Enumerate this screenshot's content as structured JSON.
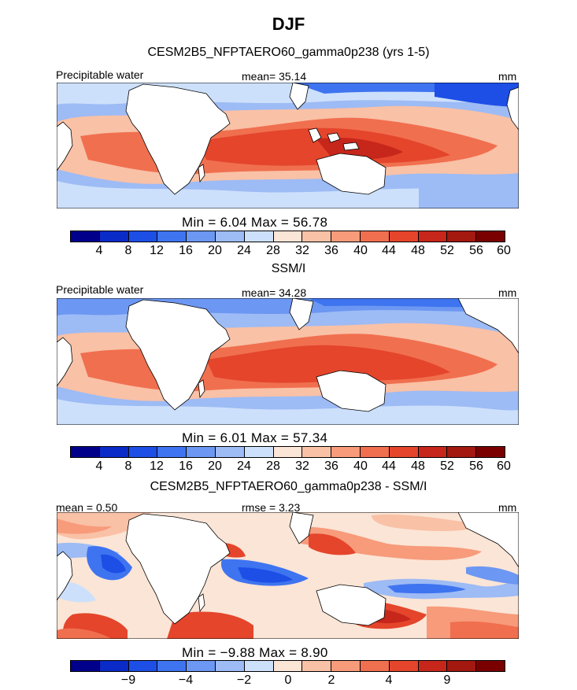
{
  "title": "DJF",
  "colors": [
    "#00008b",
    "#0a2bc7",
    "#1d4fe6",
    "#3f74f0",
    "#6c97f2",
    "#9dbbf5",
    "#cde0fb",
    "#fbe5d6",
    "#f9c1a6",
    "#f79b7b",
    "#f06f4f",
    "#e4452b",
    "#c7261b",
    "#a3180f",
    "#7a0000"
  ],
  "panels": [
    {
      "title": "CESM2B5_NFPTAERO60_gamma0p238 (yrs 1-5)",
      "left_label": "Precipitable water",
      "mid_label": "mean=  35.14",
      "right_label": "mm",
      "minmax": "Min =    6.04  Max =   56.78",
      "colorbar_ticks": [
        "4",
        "8",
        "12",
        "16",
        "20",
        "24",
        "28",
        "32",
        "36",
        "40",
        "44",
        "48",
        "52",
        "56",
        "60"
      ]
    },
    {
      "title": "SSM/I",
      "left_label": "Precipitable water",
      "mid_label": "mean=  34.28",
      "right_label": "mm",
      "minmax": "Min =    6.01  Max =   57.34",
      "colorbar_ticks": [
        "4",
        "8",
        "12",
        "16",
        "20",
        "24",
        "28",
        "32",
        "36",
        "40",
        "44",
        "48",
        "52",
        "56",
        "60"
      ]
    },
    {
      "title": "CESM2B5_NFPTAERO60_gamma0p238 - SSM/I",
      "left_label": "mean =    0.50",
      "mid_label": "rmse =    3.23",
      "right_label": "mm",
      "minmax": "Min =  −9.88  Max =    8.90",
      "colorbar_ticks": [
        "−9",
        "−4",
        "−2",
        "0",
        "2",
        "4",
        "9"
      ]
    }
  ],
  "chart_data": [
    {
      "type": "heatmap",
      "title": "CESM2B5_NFPTAERO60_gamma0p238 (yrs 1-5)",
      "variable": "Precipitable water",
      "units": "mm",
      "mean": 35.14,
      "min": 6.04,
      "max": 56.78,
      "colorbar_levels": [
        4,
        8,
        12,
        16,
        20,
        24,
        28,
        32,
        36,
        40,
        44,
        48,
        52,
        56,
        60
      ]
    },
    {
      "type": "heatmap",
      "title": "SSM/I",
      "variable": "Precipitable water",
      "units": "mm",
      "mean": 34.28,
      "min": 6.01,
      "max": 57.34,
      "colorbar_levels": [
        4,
        8,
        12,
        16,
        20,
        24,
        28,
        32,
        36,
        40,
        44,
        48,
        52,
        56,
        60
      ]
    },
    {
      "type": "heatmap",
      "title": "CESM2B5_NFPTAERO60_gamma0p238 - SSM/I",
      "units": "mm",
      "mean": 0.5,
      "rmse": 3.23,
      "min": -9.88,
      "max": 8.9,
      "colorbar_ticks": [
        -9,
        -4,
        -2,
        0,
        2,
        4,
        9
      ]
    }
  ]
}
